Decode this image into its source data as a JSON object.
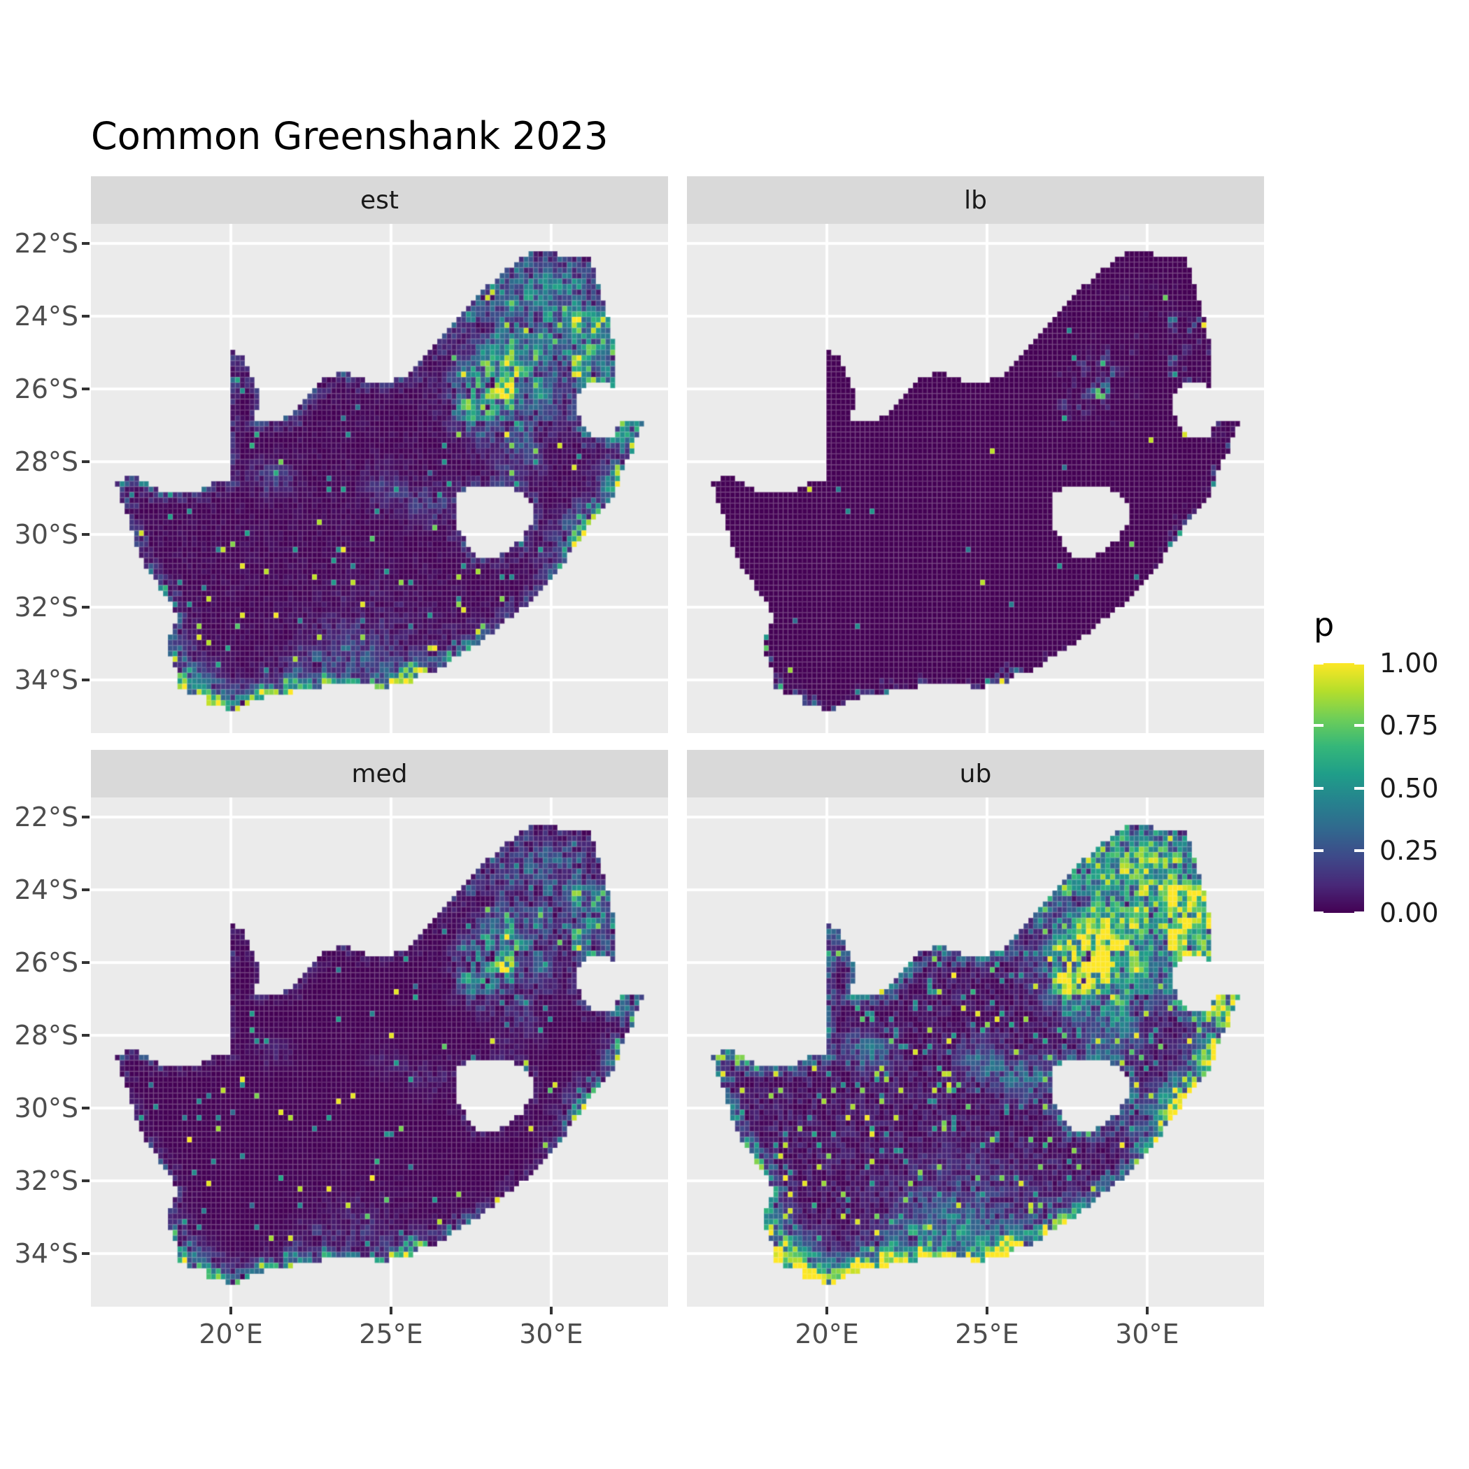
{
  "title": "Common Greenshank 2023",
  "facets": [
    {
      "label": "est",
      "col": 0,
      "row": 0,
      "gamma": 1.0,
      "gain": 1.05,
      "speckle": 0.012,
      "seed": 101
    },
    {
      "label": "lb",
      "col": 1,
      "row": 0,
      "gamma": 4.0,
      "gain": 0.38,
      "speckle": 0.0025,
      "seed": 202
    },
    {
      "label": "med",
      "col": 0,
      "row": 1,
      "gamma": 1.35,
      "gain": 0.85,
      "speckle": 0.008,
      "seed": 303
    },
    {
      "label": "ub",
      "col": 1,
      "row": 1,
      "gamma": 0.8,
      "gain": 1.55,
      "speckle": 0.03,
      "seed": 404
    }
  ],
  "axes": {
    "x": {
      "labels": [
        "20°E",
        "25°E",
        "30°E"
      ],
      "values": [
        20,
        25,
        30
      ]
    },
    "y": {
      "labels": [
        "22°S",
        "24°S",
        "26°S",
        "28°S",
        "30°S",
        "32°S",
        "34°S"
      ],
      "values": [
        22,
        24,
        26,
        28,
        30,
        32,
        34
      ]
    }
  },
  "legend": {
    "title": "p",
    "labels": [
      "1.00",
      "0.75",
      "0.50",
      "0.25",
      "0.00"
    ],
    "values": [
      1.0,
      0.75,
      0.5,
      0.25,
      0.0
    ]
  },
  "chart_data": {
    "type": "heatmap",
    "subtype": "faceted-map-raster",
    "region": "South Africa",
    "title": "Common Greenshank 2023",
    "facet_labels": [
      "est",
      "lb",
      "med",
      "ub"
    ],
    "fill_variable": "p",
    "fill_range": [
      0.0,
      1.0
    ],
    "xlabel_ticks": [
      20,
      25,
      30
    ],
    "ylabel_ticks": [
      -22,
      -24,
      -26,
      -28,
      -30,
      -32,
      -34
    ],
    "lon_range": [
      15.63,
      33.65
    ],
    "lat_range": [
      -35.46,
      -21.46
    ],
    "grid_cell_deg": 0.15,
    "panel_bg": "#ebebeb",
    "strip_bg": "#d9d9d9",
    "gridline_color": "#ffffff",
    "axis_text_color": "#4d4d4d",
    "colormap": [
      "#440154",
      "#482878",
      "#3e4989",
      "#31688e",
      "#26828e",
      "#1f9e89",
      "#35b779",
      "#6ece58",
      "#b5de2b",
      "#fde725"
    ],
    "outline": [
      [
        16.45,
        -28.58
      ],
      [
        16.8,
        -28.4
      ],
      [
        17.05,
        -28.38
      ],
      [
        17.35,
        -28.55
      ],
      [
        17.6,
        -28.7
      ],
      [
        17.95,
        -28.78
      ],
      [
        18.3,
        -28.88
      ],
      [
        18.75,
        -28.86
      ],
      [
        19.2,
        -28.72
      ],
      [
        19.55,
        -28.52
      ],
      [
        19.98,
        -28.43
      ],
      [
        19.98,
        -24.9
      ],
      [
        20.32,
        -25.05
      ],
      [
        20.58,
        -25.45
      ],
      [
        20.8,
        -25.95
      ],
      [
        20.9,
        -26.4
      ],
      [
        20.7,
        -26.82
      ],
      [
        21.05,
        -26.86
      ],
      [
        21.45,
        -26.84
      ],
      [
        21.9,
        -26.66
      ],
      [
        22.35,
        -26.25
      ],
      [
        22.72,
        -25.88
      ],
      [
        23.0,
        -25.62
      ],
      [
        23.45,
        -25.55
      ],
      [
        23.9,
        -25.62
      ],
      [
        24.3,
        -25.76
      ],
      [
        24.75,
        -25.8
      ],
      [
        25.1,
        -25.72
      ],
      [
        25.55,
        -25.6
      ],
      [
        25.9,
        -25.18
      ],
      [
        26.15,
        -24.92
      ],
      [
        26.45,
        -24.62
      ],
      [
        26.85,
        -24.28
      ],
      [
        27.15,
        -23.92
      ],
      [
        27.55,
        -23.57
      ],
      [
        27.95,
        -23.22
      ],
      [
        28.35,
        -22.88
      ],
      [
        28.8,
        -22.6
      ],
      [
        29.15,
        -22.32
      ],
      [
        29.55,
        -22.15
      ],
      [
        29.95,
        -22.24
      ],
      [
        30.35,
        -22.3
      ],
      [
        30.8,
        -22.33
      ],
      [
        31.2,
        -22.4
      ],
      [
        31.4,
        -22.95
      ],
      [
        31.55,
        -23.48
      ],
      [
        31.75,
        -23.98
      ],
      [
        31.9,
        -24.52
      ],
      [
        31.98,
        -25.1
      ],
      [
        32.02,
        -25.62
      ],
      [
        31.97,
        -25.97
      ],
      [
        31.5,
        -25.73
      ],
      [
        31.05,
        -25.87
      ],
      [
        30.82,
        -26.12
      ],
      [
        30.78,
        -26.48
      ],
      [
        30.88,
        -26.82
      ],
      [
        31.06,
        -27.1
      ],
      [
        31.4,
        -27.3
      ],
      [
        31.96,
        -27.32
      ],
      [
        32.12,
        -26.86
      ],
      [
        32.5,
        -26.86
      ],
      [
        32.9,
        -26.86
      ],
      [
        32.55,
        -27.6
      ],
      [
        32.22,
        -28.25
      ],
      [
        31.95,
        -28.85
      ],
      [
        31.5,
        -29.4
      ],
      [
        31.05,
        -29.88
      ],
      [
        30.6,
        -30.45
      ],
      [
        30.2,
        -31.0
      ],
      [
        29.7,
        -31.52
      ],
      [
        29.2,
        -31.92
      ],
      [
        28.65,
        -32.28
      ],
      [
        28.1,
        -32.72
      ],
      [
        27.55,
        -33.05
      ],
      [
        27.0,
        -33.32
      ],
      [
        26.4,
        -33.72
      ],
      [
        25.9,
        -33.8
      ],
      [
        25.65,
        -34.02
      ],
      [
        25.25,
        -34.0
      ],
      [
        24.85,
        -34.2
      ],
      [
        24.2,
        -34.1
      ],
      [
        23.6,
        -34.12
      ],
      [
        23.05,
        -34.1
      ],
      [
        22.55,
        -34.2
      ],
      [
        22.15,
        -34.2
      ],
      [
        21.7,
        -34.42
      ],
      [
        21.15,
        -34.4
      ],
      [
        20.55,
        -34.62
      ],
      [
        20.0,
        -34.82
      ],
      [
        19.6,
        -34.64
      ],
      [
        19.3,
        -34.62
      ],
      [
        19.1,
        -34.36
      ],
      [
        18.82,
        -34.42
      ],
      [
        18.62,
        -34.2
      ],
      [
        18.47,
        -34.36
      ],
      [
        18.33,
        -34.12
      ],
      [
        18.44,
        -33.92
      ],
      [
        18.28,
        -33.62
      ],
      [
        18.1,
        -33.28
      ],
      [
        17.96,
        -32.96
      ],
      [
        18.2,
        -32.62
      ],
      [
        18.3,
        -32.28
      ],
      [
        18.18,
        -31.92
      ],
      [
        17.9,
        -31.56
      ],
      [
        17.6,
        -31.2
      ],
      [
        17.32,
        -30.82
      ],
      [
        17.12,
        -30.42
      ],
      [
        16.95,
        -30.02
      ],
      [
        16.82,
        -29.56
      ],
      [
        16.62,
        -29.1
      ]
    ],
    "lesotho_hole": [
      [
        27.0,
        -28.92
      ],
      [
        27.4,
        -28.7
      ],
      [
        27.85,
        -28.62
      ],
      [
        28.35,
        -28.6
      ],
      [
        28.85,
        -28.72
      ],
      [
        29.25,
        -28.98
      ],
      [
        29.45,
        -29.32
      ],
      [
        29.38,
        -29.7
      ],
      [
        29.1,
        -30.06
      ],
      [
        28.68,
        -30.4
      ],
      [
        28.2,
        -30.65
      ],
      [
        27.73,
        -30.56
      ],
      [
        27.38,
        -30.24
      ],
      [
        27.08,
        -29.82
      ],
      [
        26.96,
        -29.35
      ]
    ],
    "hotspots": [
      [
        28.05,
        -26.05,
        0.55,
        0.45,
        1.05
      ],
      [
        28.35,
        -25.55,
        0.45,
        0.4,
        0.85
      ],
      [
        27.55,
        -25.85,
        0.65,
        0.5,
        0.6
      ],
      [
        29.05,
        -26.35,
        0.85,
        0.6,
        0.6
      ],
      [
        29.95,
        -24.85,
        0.9,
        0.7,
        0.5
      ],
      [
        31.1,
        -23.9,
        0.7,
        0.9,
        0.5
      ],
      [
        29.35,
        -23.05,
        0.85,
        0.55,
        0.45
      ],
      [
        27.55,
        -23.35,
        0.7,
        0.5,
        0.35
      ],
      [
        30.95,
        -25.45,
        0.6,
        0.5,
        0.55
      ],
      [
        30.9,
        -29.9,
        0.45,
        0.45,
        0.6
      ],
      [
        32.0,
        -28.6,
        0.5,
        0.55,
        0.45
      ],
      [
        32.45,
        -27.4,
        0.45,
        0.6,
        0.5
      ],
      [
        30.45,
        -30.7,
        0.5,
        0.5,
        0.45
      ],
      [
        18.5,
        -33.95,
        0.5,
        0.4,
        0.85
      ],
      [
        18.85,
        -34.4,
        0.65,
        0.3,
        0.7
      ],
      [
        20.5,
        -34.55,
        0.85,
        0.3,
        0.55
      ],
      [
        22.25,
        -34.1,
        0.85,
        0.35,
        0.5
      ],
      [
        25.6,
        -33.9,
        0.55,
        0.4,
        0.6
      ],
      [
        27.9,
        -33.1,
        0.55,
        0.4,
        0.5
      ],
      [
        24.5,
        -32.9,
        1.4,
        0.9,
        0.16
      ],
      [
        26.2,
        -29.1,
        0.5,
        0.4,
        0.3
      ],
      [
        24.8,
        -28.7,
        0.45,
        0.35,
        0.28
      ],
      [
        21.25,
        -28.45,
        0.45,
        0.3,
        0.32
      ],
      [
        17.95,
        -32.7,
        0.5,
        0.6,
        0.4
      ],
      [
        23.5,
        -33.5,
        0.9,
        0.6,
        0.25
      ],
      [
        28.6,
        -24.3,
        0.8,
        0.6,
        0.45
      ],
      [
        30.2,
        -23.3,
        0.6,
        0.5,
        0.4
      ],
      [
        31.6,
        -24.9,
        0.5,
        0.7,
        0.45
      ],
      [
        28.9,
        -27.8,
        0.6,
        0.5,
        0.3
      ],
      [
        27.7,
        -26.7,
        0.55,
        0.45,
        0.45
      ]
    ]
  }
}
